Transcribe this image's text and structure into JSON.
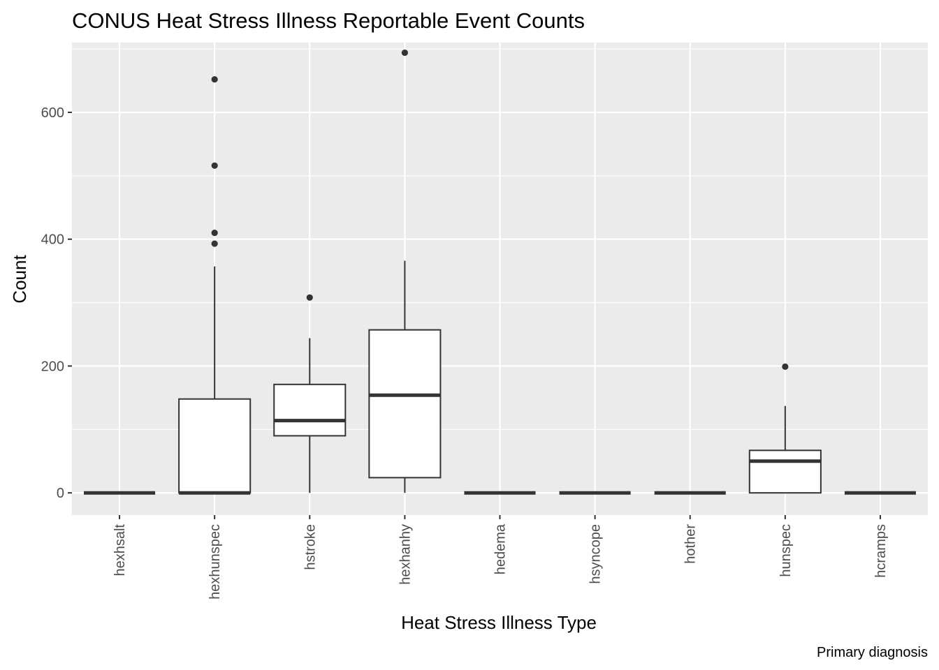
{
  "chart_data": {
    "type": "boxplot",
    "title": "CONUS Heat Stress Illness Reportable Event Counts",
    "xlabel": "Heat Stress Illness Type",
    "ylabel": "Count",
    "caption": "Primary diagnosis",
    "ylim": [
      -35,
      710
    ],
    "yticks": [
      0,
      200,
      400,
      600
    ],
    "grid": true,
    "categories": [
      "hexhsalt",
      "hexhunspec",
      "hstroke",
      "hexhanhy",
      "hedema",
      "hsyncope",
      "hother",
      "hunspec",
      "hcramps"
    ],
    "boxes": [
      {
        "category": "hexhsalt",
        "min": 0,
        "q1": 0,
        "median": 0,
        "q3": 0,
        "max": 0,
        "outliers": []
      },
      {
        "category": "hexhunspec",
        "min": 0,
        "q1": 0,
        "median": 0,
        "q3": 148,
        "max": 357,
        "outliers": [
          393,
          410,
          516,
          652
        ]
      },
      {
        "category": "hstroke",
        "min": 0,
        "q1": 90,
        "median": 114,
        "q3": 171,
        "max": 244,
        "outliers": [
          308
        ]
      },
      {
        "category": "hexhanhy",
        "min": 0,
        "q1": 24,
        "median": 154,
        "q3": 257,
        "max": 366,
        "outliers": [
          694
        ]
      },
      {
        "category": "hedema",
        "min": 0,
        "q1": 0,
        "median": 0,
        "q3": 0,
        "max": 0,
        "outliers": []
      },
      {
        "category": "hsyncope",
        "min": 0,
        "q1": 0,
        "median": 0,
        "q3": 0,
        "max": 0,
        "outliers": []
      },
      {
        "category": "hother",
        "min": 0,
        "q1": 0,
        "median": 0,
        "q3": 0,
        "max": 0,
        "outliers": []
      },
      {
        "category": "hunspec",
        "min": 0,
        "q1": 0,
        "median": 50,
        "q3": 67,
        "max": 137,
        "outliers": [
          199
        ]
      },
      {
        "category": "hcramps",
        "min": 0,
        "q1": 0,
        "median": 0,
        "q3": 0,
        "max": 0,
        "outliers": []
      }
    ],
    "colors": {
      "panel": "#ebebeb",
      "grid_major": "#ffffff",
      "box_fill": "#ffffff",
      "box_line": "#333333",
      "tick_text": "#4d4d4d"
    }
  }
}
